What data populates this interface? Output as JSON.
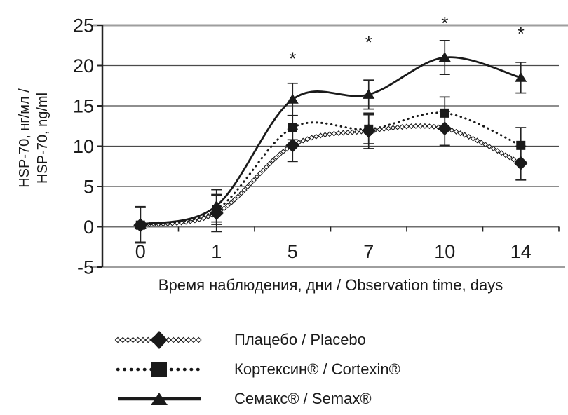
{
  "chart_data": {
    "type": "line",
    "title": "",
    "xlabel": "Время наблюдения, дни  / Observation time, days",
    "ylabel_line1": "HSP-70, нг/мл /",
    "ylabel_line2": "HSP-70, ng/ml",
    "x_categories": [
      0,
      1,
      5,
      7,
      10,
      14
    ],
    "x_tick_labels": [
      "0",
      "1",
      "5",
      "7",
      "10",
      "14"
    ],
    "yticks": [
      25,
      20,
      15,
      10,
      5,
      0,
      -5
    ],
    "ylim": [
      -5,
      25
    ],
    "grid": true,
    "legend_position": "bottom",
    "series": [
      {
        "name": "Плацебо / Placebo",
        "marker": "diamond",
        "line_style": "diamond-chain",
        "values": [
          0.2,
          1.7,
          10.1,
          11.9,
          12.2,
          7.9
        ],
        "errors": [
          2.2,
          2.3,
          2.0,
          2.2,
          2.1,
          2.1
        ]
      },
      {
        "name": "Кортексин® / Cortexin®",
        "marker": "square",
        "line_style": "dotted",
        "values": [
          0.2,
          2.1,
          12.3,
          12.1,
          14.1,
          10.1
        ],
        "errors": [
          2.2,
          1.8,
          1.5,
          1.8,
          2.0,
          2.2
        ]
      },
      {
        "name": "Семакс® / Semax®",
        "marker": "triangle",
        "line_style": "solid",
        "values": [
          0.3,
          2.6,
          15.8,
          16.4,
          21.0,
          18.5
        ],
        "errors": [
          2.2,
          2.0,
          2.0,
          1.8,
          2.1,
          1.9
        ]
      }
    ],
    "annotations": [
      {
        "label": "*",
        "x_index": 2,
        "y": 21.2
      },
      {
        "label": "*",
        "x_index": 3,
        "y": 23.2
      },
      {
        "label": "*",
        "x_index": 4,
        "y": 25.6
      },
      {
        "label": "*",
        "x_index": 5,
        "y": 24.3
      }
    ],
    "colors": {
      "line": "#1a1a1a",
      "grid": "#4a4a4a",
      "zero_line": "#6e6e6e",
      "border": "#9e9e9e",
      "axis": "#222222",
      "text": "#1a1a1a"
    }
  }
}
